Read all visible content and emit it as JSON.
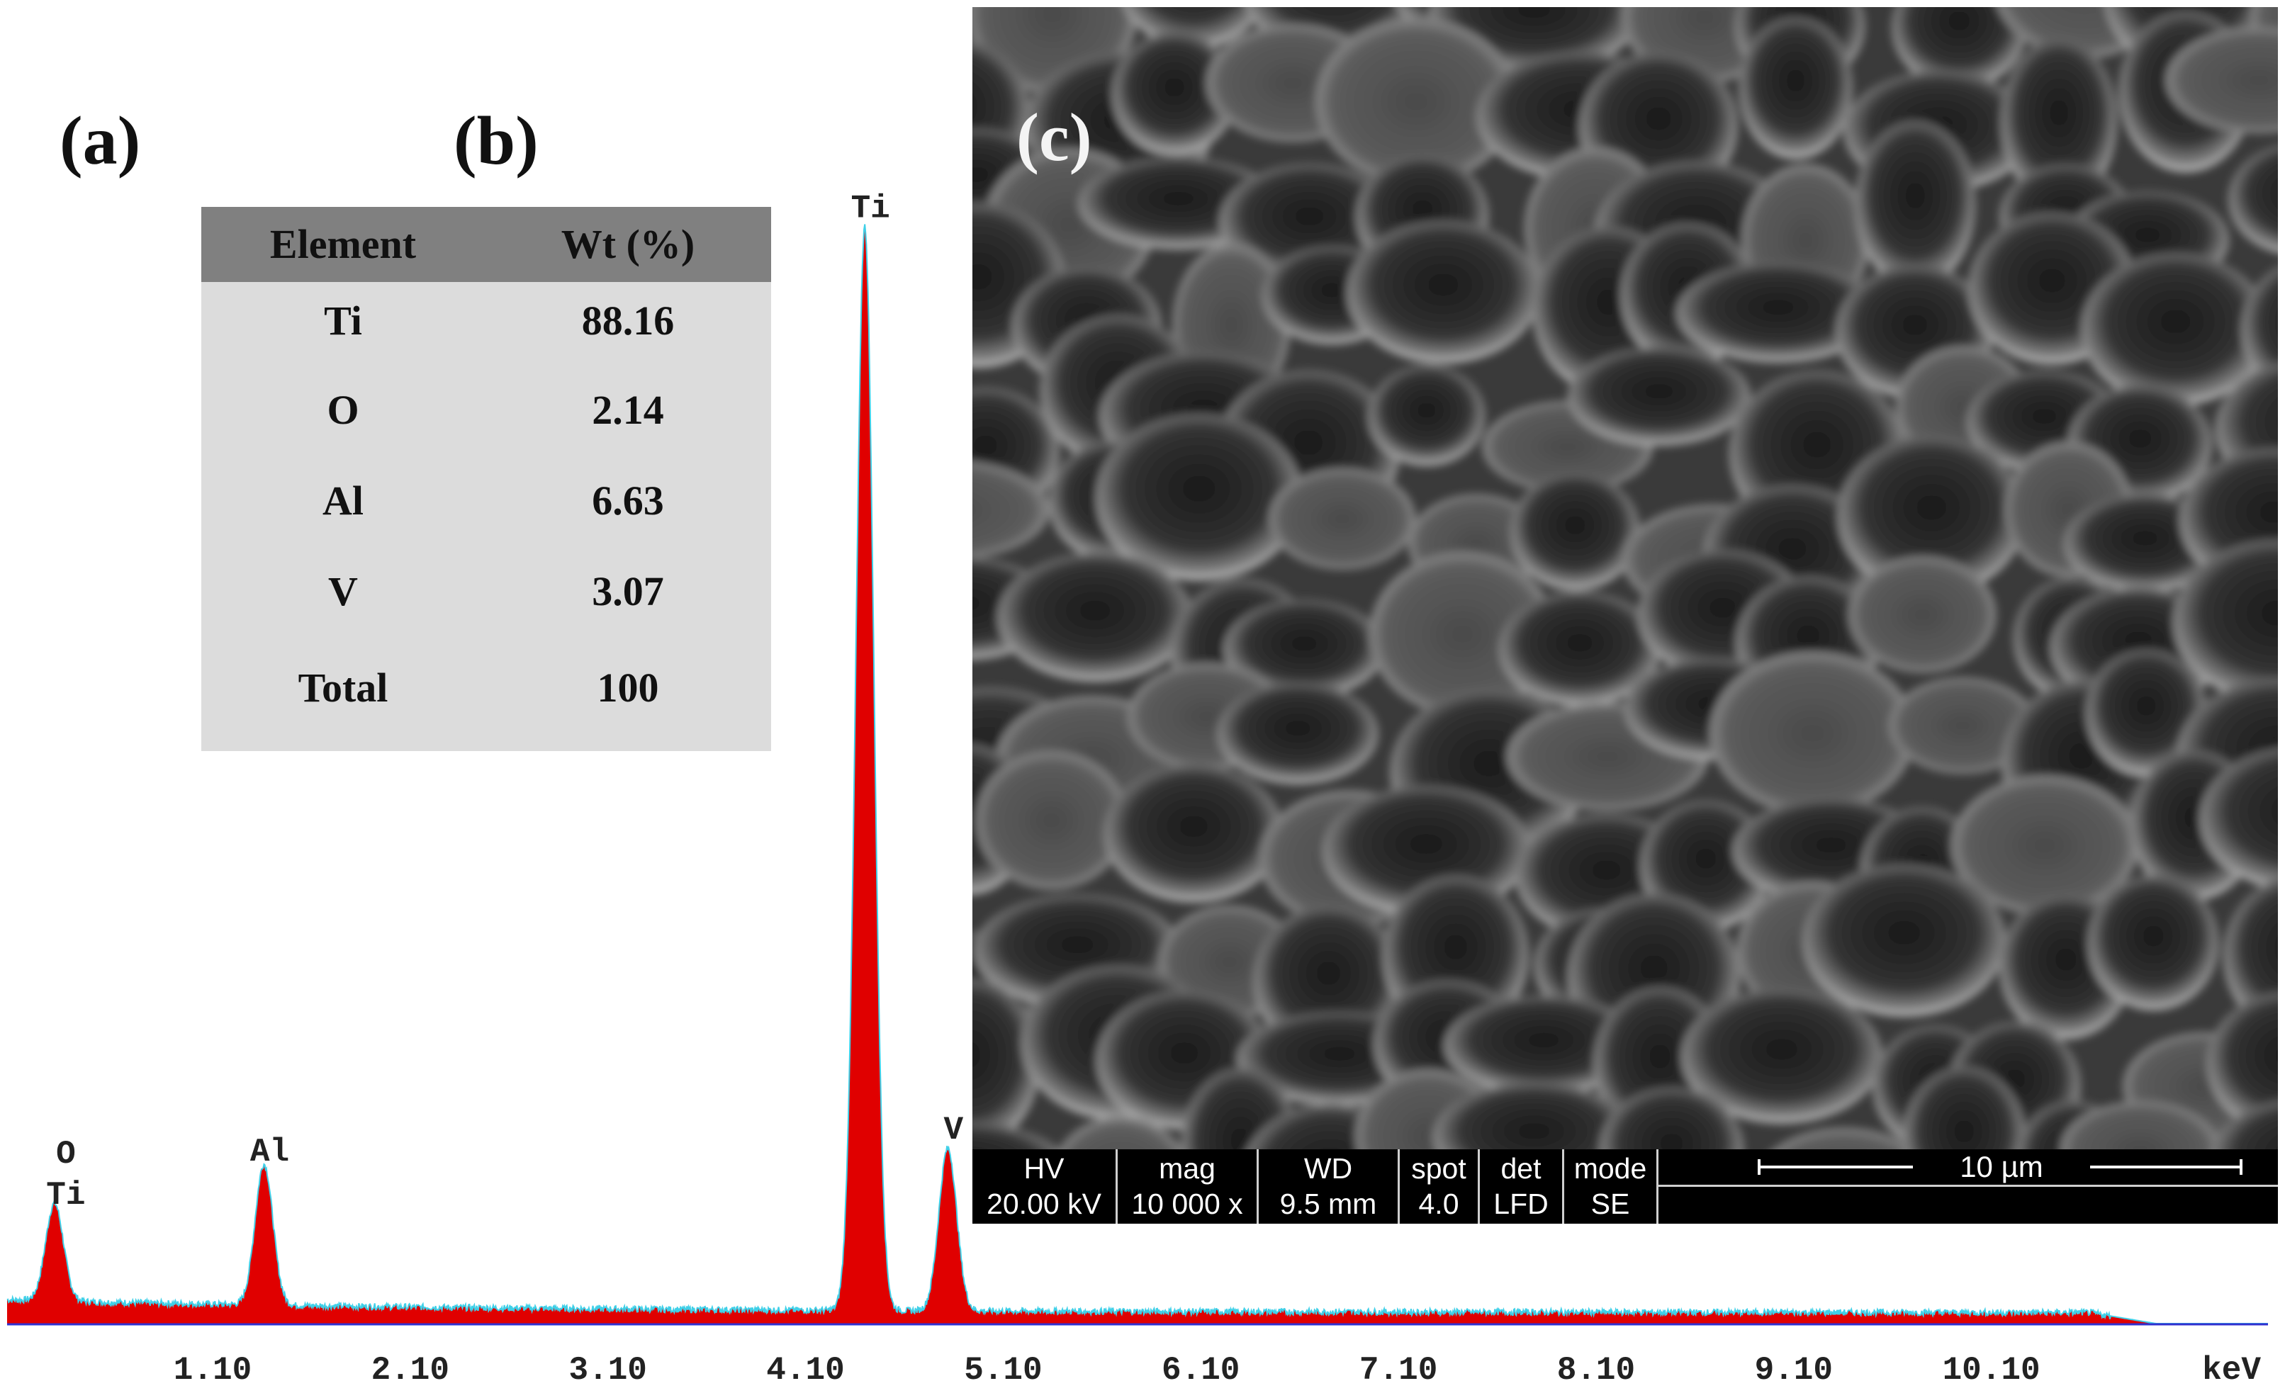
{
  "panel_labels": {
    "a": "(a)",
    "b": "(b)",
    "c": "(c)"
  },
  "colors": {
    "spectrum_fill": "#e00000",
    "spectrum_outline": "#3fd0e8",
    "baseline": "#3030d0"
  },
  "composition_table": {
    "headers": [
      "Element",
      "Wt (%)"
    ],
    "rows": [
      {
        "element": "Ti",
        "wt": "88.16"
      },
      {
        "element": "O",
        "wt": "2.14"
      },
      {
        "element": "Al",
        "wt": "6.63"
      },
      {
        "element": "V",
        "wt": "3.07"
      },
      {
        "element": "Total",
        "wt": "100"
      }
    ]
  },
  "chart_data": {
    "type": "area",
    "xlabel": "keV",
    "ylabel": "",
    "title": "",
    "xlim": [
      0.06,
      11.5
    ],
    "x_ticks": [
      1.1,
      2.1,
      3.1,
      4.1,
      5.1,
      6.1,
      7.1,
      8.1,
      9.1,
      10.1
    ],
    "x_tick_labels": [
      "1.10",
      "2.10",
      "3.10",
      "4.10",
      "5.10",
      "6.10",
      "7.10",
      "8.10",
      "9.10",
      "10.10"
    ],
    "y_axis_visible": false,
    "peaks": [
      {
        "label": "O\nTi",
        "energy_keV": 0.3,
        "relative_intensity": 0.09
      },
      {
        "label": "Al",
        "energy_keV": 1.36,
        "relative_intensity": 0.13
      },
      {
        "label": "Ti",
        "energy_keV": 4.4,
        "relative_intensity": 1.0
      },
      {
        "label": "V",
        "energy_keV": 4.82,
        "relative_intensity": 0.15
      }
    ],
    "background_level": 0.01
  },
  "sem_databar": {
    "fields": [
      {
        "key": "HV",
        "value": "20.00 kV"
      },
      {
        "key": "mag",
        "value": "10 000 x"
      },
      {
        "key": "WD",
        "value": "9.5 mm"
      },
      {
        "key": "spot",
        "value": "4.0"
      },
      {
        "key": "det",
        "value": "LFD"
      },
      {
        "key": "mode",
        "value": "SE"
      }
    ],
    "scale_bar_label": "10 µm"
  }
}
